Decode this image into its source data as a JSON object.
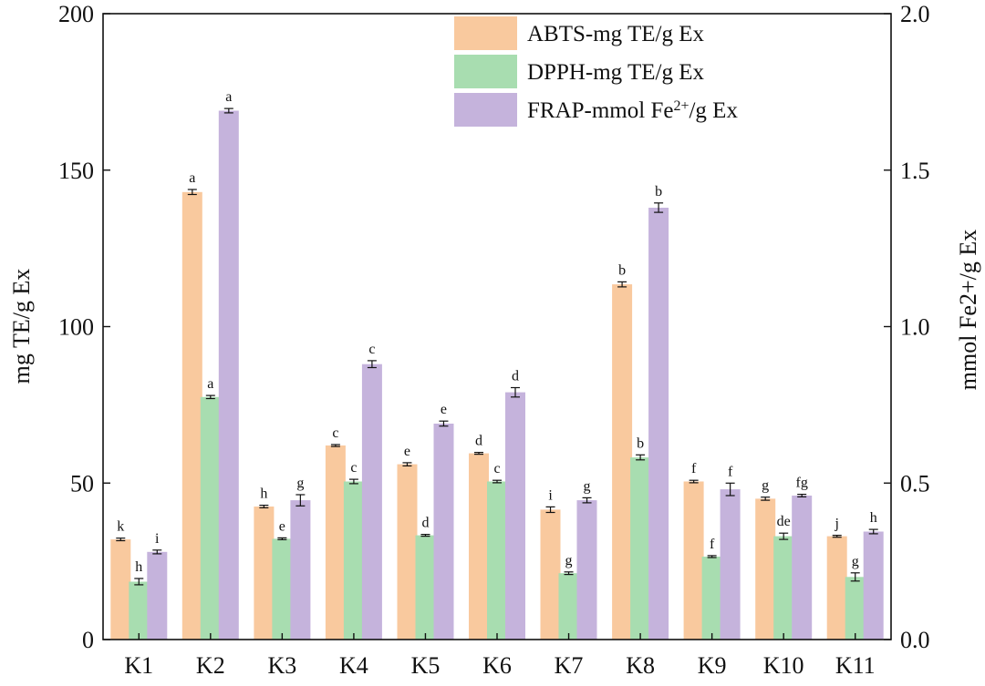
{
  "chart_data": {
    "type": "bar",
    "categories": [
      "K1",
      "K2",
      "K3",
      "K4",
      "K5",
      "K6",
      "K7",
      "K8",
      "K9",
      "K10",
      "K11"
    ],
    "ylabel": "mg TE/g Ex",
    "y2label": "mmol Fe2+/g Ex",
    "ylim": [
      0,
      200
    ],
    "y2lim": [
      0,
      2.0
    ],
    "yticks": [
      "0",
      "50",
      "100",
      "150",
      "200"
    ],
    "y2ticks": [
      "0.0",
      "0.5",
      "1.0",
      "1.5",
      "2.0"
    ],
    "legend_position": "top-right",
    "grid": false,
    "series": [
      {
        "name": "ABTS-mg TE/g Ex",
        "legend_main": "ABTS-mg TE/g Ex",
        "legend_sup": "",
        "legend_tail": "",
        "color": "#F9C99E",
        "axis": "left",
        "values": [
          32,
          143,
          42.5,
          62,
          56,
          59.5,
          41.5,
          113.5,
          50.5,
          45,
          33
        ],
        "errors": [
          0.4,
          0.8,
          0.4,
          0.3,
          0.5,
          0.3,
          0.9,
          0.8,
          0.4,
          0.5,
          0.3
        ],
        "letters": [
          "k",
          "a",
          "h",
          "c",
          "e",
          "d",
          "i",
          "b",
          "f",
          "g",
          "j"
        ]
      },
      {
        "name": "DPPH-mg TE/g Ex",
        "legend_main": "DPPH-mg TE/g Ex",
        "legend_sup": "",
        "legend_tail": "",
        "color": "#A8DDB0",
        "axis": "left",
        "values": [
          18.5,
          77.5,
          32.2,
          50.5,
          33.3,
          50.5,
          21.2,
          58.2,
          26.5,
          33,
          20
        ],
        "errors": [
          1.0,
          0.5,
          0.3,
          0.7,
          0.3,
          0.4,
          0.4,
          0.8,
          0.3,
          1.0,
          1.3
        ],
        "letters": [
          "h",
          "a",
          "e",
          "c",
          "d",
          "c",
          "g",
          "b",
          "f",
          "de",
          "g"
        ]
      },
      {
        "name": "FRAP-mmol Fe2+/g Ex",
        "legend_main": "FRAP-mmol Fe",
        "legend_sup": "2+",
        "legend_tail": "/g Ex",
        "color": "#C5B3DC",
        "axis": "right",
        "values": [
          0.28,
          1.69,
          0.445,
          0.88,
          0.69,
          0.79,
          0.445,
          1.38,
          0.48,
          0.46,
          0.345
        ],
        "errors": [
          0.006,
          0.007,
          0.018,
          0.011,
          0.008,
          0.015,
          0.008,
          0.015,
          0.02,
          0.004,
          0.007
        ],
        "letters": [
          "i",
          "a",
          "g",
          "c",
          "e",
          "d",
          "g",
          "b",
          "f",
          "fg",
          "h"
        ]
      }
    ]
  }
}
